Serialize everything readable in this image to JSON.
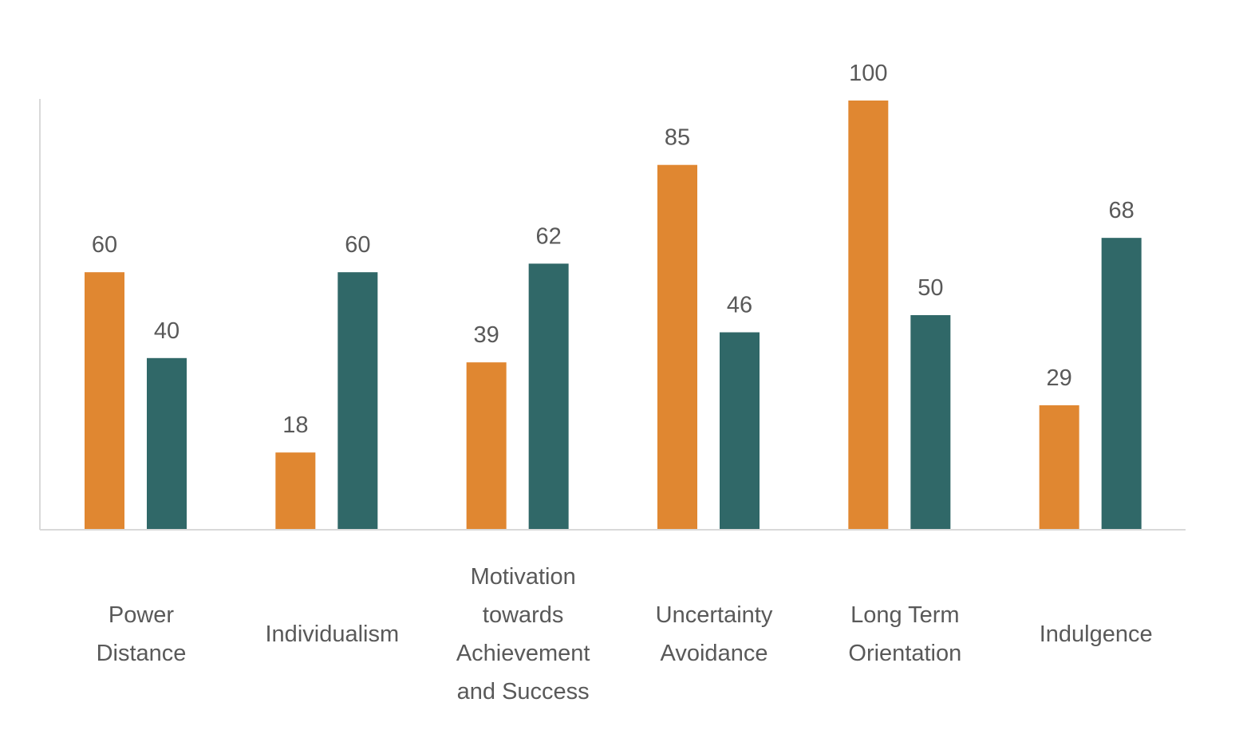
{
  "chart_data": {
    "type": "bar",
    "categories": [
      [
        "Power",
        "Distance"
      ],
      [
        "Individualism"
      ],
      [
        "Motivation",
        "towards",
        "Achievement",
        "and Success"
      ],
      [
        "Uncertainty",
        "Avoidance"
      ],
      [
        "Long Term",
        "Orientation"
      ],
      [
        "Indulgence"
      ]
    ],
    "series": [
      {
        "color": "#E08731",
        "values": [
          60,
          18,
          39,
          85,
          100,
          29
        ]
      },
      {
        "color": "#306868",
        "values": [
          40,
          60,
          62,
          46,
          50,
          68
        ]
      }
    ],
    "ylim": [
      0,
      100
    ],
    "title": "",
    "xlabel": "",
    "ylabel": "",
    "grid": false,
    "legend": "none",
    "data_labels": true
  }
}
